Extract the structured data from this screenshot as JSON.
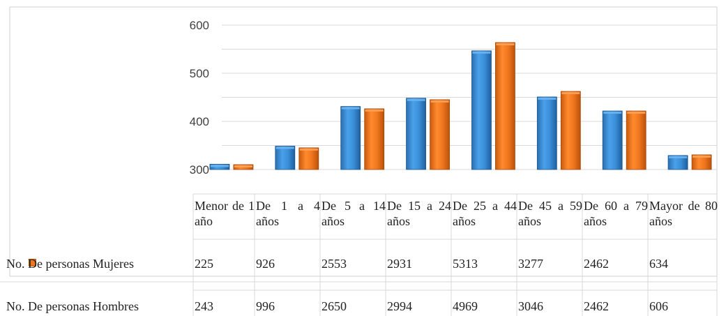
{
  "colors": {
    "hombres": "#3a8fd8",
    "mujeres": "#f0761e"
  },
  "chart_data": {
    "type": "bar",
    "categories": [
      "Menor de 1 año",
      "De 1 a 4 años",
      "De 5 a 14 años",
      "De 15 a 24 años",
      "De 25 a 44 años",
      "De 45 a 59 años",
      "De 60 a 79 años",
      "Mayor de 80 años"
    ],
    "series": [
      {
        "name": "No. De personas Mujeres",
        "values": [
          225,
          926,
          2553,
          2931,
          5313,
          3277,
          2462,
          634
        ]
      },
      {
        "name": "No. De personas Hombres",
        "values": [
          243,
          996,
          2650,
          2994,
          4969,
          3046,
          2462,
          606
        ]
      }
    ],
    "yticks": [
      "300",
      "400",
      "500",
      "600"
    ],
    "grid": true,
    "legend": "data-table"
  }
}
